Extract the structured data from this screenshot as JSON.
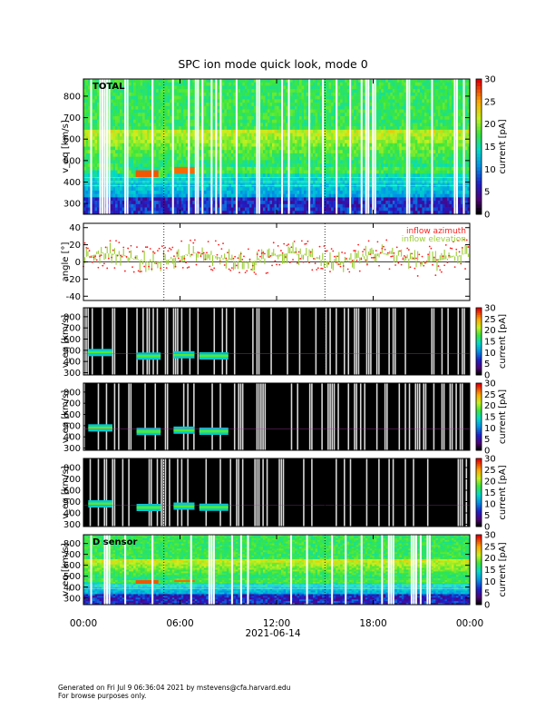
{
  "figure": {
    "title": "SPC ion mode quick look, mode 0",
    "date_label": "2021-06-14",
    "footer_line1": "Generated on Fri Jul  9 06:36:04 2021 by mstevens@cfa.harvard.edu",
    "footer_line2": "For browse purposes only."
  },
  "chart_data": [
    {
      "type": "heatmap",
      "panel_label": "TOTAL",
      "xlabel": "",
      "ylabel": "v_eq [km/s]",
      "y_ticks": [
        300,
        400,
        500,
        600,
        700,
        800
      ],
      "ylim": [
        250,
        880
      ],
      "colorbar": {
        "label": "current [pA]",
        "ticks": [
          0,
          5,
          10,
          15,
          20,
          25,
          30
        ],
        "range": [
          0,
          30
        ]
      },
      "core_velocity": [
        {
          "t": 0.0,
          "v": 470
        },
        {
          "t": 2.0,
          "v": 470
        },
        {
          "t": 3.0,
          "v": 440
        },
        {
          "t": 4.5,
          "v": 440
        },
        {
          "t": 5.5,
          "v": 455
        },
        {
          "t": 7.0,
          "v": 455
        },
        {
          "t": 9.0,
          "v": 450
        },
        {
          "t": 24.0,
          "v": 450
        }
      ],
      "style": "dense"
    },
    {
      "type": "scatter",
      "xlabel": "",
      "ylabel": "angle [°]",
      "y_ticks": [
        -40,
        -20,
        0,
        20,
        40
      ],
      "ylim": [
        -45,
        45
      ],
      "legend": [
        "inflow azimuth",
        "inflow elevation"
      ],
      "legend_colors": [
        "#ff2020",
        "#9acd32"
      ],
      "legend_placement": "top-right"
    },
    {
      "type": "heatmap",
      "panel_label": "",
      "ylabel": "v_eq [km/s]",
      "y_ticks": [
        300,
        400,
        500,
        600,
        700,
        800
      ],
      "ylim": [
        280,
        880
      ],
      "colorbar": {
        "label": "current [pA]",
        "ticks": [
          0,
          5,
          10,
          15,
          20,
          25,
          30
        ],
        "range": [
          0,
          30
        ]
      },
      "beam_segments": [
        {
          "t0": 0.3,
          "t1": 1.8,
          "v": 480
        },
        {
          "t0": 3.3,
          "t1": 4.8,
          "v": 448
        },
        {
          "t0": 5.6,
          "t1": 6.9,
          "v": 460
        },
        {
          "t0": 7.2,
          "t1": 9.0,
          "v": 450
        }
      ],
      "style": "sparse"
    },
    {
      "type": "heatmap",
      "panel_label": "",
      "ylabel": "v_eq [km/s]",
      "y_ticks": [
        300,
        400,
        500,
        600,
        700,
        800
      ],
      "ylim": [
        280,
        880
      ],
      "colorbar": {
        "label": "current [pA]",
        "ticks": [
          0,
          5,
          10,
          15,
          20,
          25,
          30
        ],
        "range": [
          0,
          30
        ]
      },
      "beam_segments": [
        {
          "t0": 0.3,
          "t1": 1.8,
          "v": 480
        },
        {
          "t0": 3.3,
          "t1": 4.8,
          "v": 448
        },
        {
          "t0": 5.6,
          "t1": 6.9,
          "v": 460
        },
        {
          "t0": 7.2,
          "t1": 9.0,
          "v": 450
        }
      ],
      "style": "sparse"
    },
    {
      "type": "heatmap",
      "panel_label": "",
      "ylabel": "v_eq [km/s]",
      "y_ticks": [
        300,
        400,
        500,
        600,
        700,
        800
      ],
      "ylim": [
        280,
        880
      ],
      "colorbar": {
        "label": "current [pA]",
        "ticks": [
          0,
          5,
          10,
          15,
          20,
          25,
          30
        ],
        "range": [
          0,
          30
        ]
      },
      "beam_segments": [
        {
          "t0": 0.3,
          "t1": 1.8,
          "v": 480
        },
        {
          "t0": 3.3,
          "t1": 4.8,
          "v": 448
        },
        {
          "t0": 5.6,
          "t1": 6.9,
          "v": 460
        },
        {
          "t0": 7.2,
          "t1": 9.0,
          "v": 450
        }
      ],
      "style": "sparse"
    },
    {
      "type": "heatmap",
      "panel_label": "D sensor",
      "ylabel": "v_eq [km/s]",
      "y_ticks": [
        300,
        400,
        500,
        600,
        700,
        800
      ],
      "ylim": [
        240,
        880
      ],
      "colorbar": {
        "label": "current [pA]",
        "ticks": [
          0,
          5,
          10,
          15,
          20,
          25,
          30
        ],
        "range": [
          0,
          30
        ]
      },
      "core_velocity": [
        {
          "t": 0.0,
          "v": 470
        },
        {
          "t": 3.0,
          "v": 445
        },
        {
          "t": 4.7,
          "v": 445
        },
        {
          "t": 5.5,
          "v": 455
        },
        {
          "t": 24.0,
          "v": 455
        }
      ],
      "style": "dense"
    }
  ],
  "time_axis": {
    "range_hours": [
      0,
      24
    ],
    "ticks": [
      {
        "hour": 0,
        "label": "00:00"
      },
      {
        "hour": 6,
        "label": "06:00"
      },
      {
        "hour": 12,
        "label": "12:00"
      },
      {
        "hour": 18,
        "label": "18:00"
      },
      {
        "hour": 24,
        "label": "00:00"
      }
    ],
    "dotted_markers_hours": [
      5.0,
      15.0
    ]
  }
}
